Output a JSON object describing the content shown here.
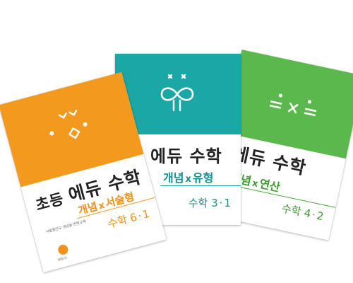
{
  "books": [
    {
      "id": "orange",
      "color": "#f39a1e",
      "title_prefix": "초등",
      "title": "에듀 수학",
      "subtitle_left": "개념",
      "subtitle_x": "x",
      "subtitle_right": "서술형",
      "grade_label": "수학",
      "grade_num_a": "6",
      "grade_num_b": "1",
      "note": "서울협인도 개념을 반짝교재",
      "logo_text": "에듀수",
      "icon": "face-icon"
    },
    {
      "id": "teal",
      "color": "#1aa7a6",
      "title": "에듀 수학",
      "subtitle_left": "개념",
      "subtitle_x": "x",
      "subtitle_right": "유형",
      "grade_label": "수학",
      "grade_num_a": "3",
      "grade_num_b": "1",
      "icon": "infinity-face-icon"
    },
    {
      "id": "green",
      "color": "#5bb84c",
      "title": "에듀 수학",
      "subtitle_left": "개념",
      "subtitle_x": "x",
      "subtitle_right": "연산",
      "grade_label": "수학",
      "grade_num_a": "4",
      "grade_num_b": "2",
      "icon": "equals-times-icon"
    }
  ]
}
